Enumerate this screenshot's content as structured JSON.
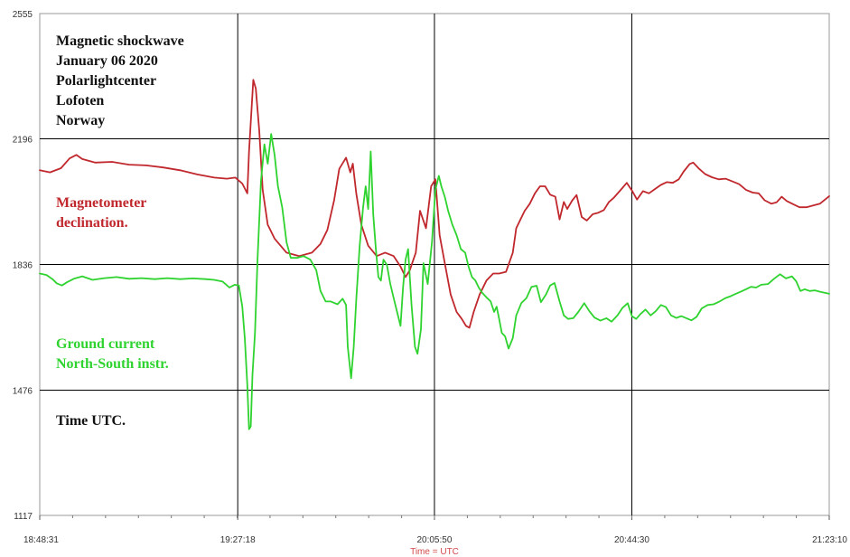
{
  "chart_data": {
    "type": "line",
    "title": "",
    "xlabel": "Time = UTC",
    "ylabel": "",
    "ylim": [
      1117,
      2555
    ],
    "yticks": [
      1117,
      1476,
      1836,
      2196,
      2555
    ],
    "yticklabels": [
      "1117",
      "1476",
      "1836",
      "2196",
      "2555"
    ],
    "xticks": [
      0,
      2327,
      4639,
      6959,
      9279
    ],
    "xticklabels": [
      "18:48:31",
      "19:27:18",
      "20:05:50",
      "20:44:30",
      "21:23:10"
    ],
    "xlim": [
      0,
      9279
    ],
    "grid": true,
    "colors": {
      "magnetometer": "#c0282d",
      "ground": "#2fd32f",
      "grid": "#000000"
    },
    "annotations": {
      "title_block": [
        "Magnetic shockwave",
        "January 06 2020",
        "Polarlightcenter",
        "Lofoten",
        "Norway"
      ],
      "magnetometer": [
        "Magnetometer",
        "declination."
      ],
      "ground": [
        "Ground current",
        "North-South instr."
      ],
      "time": "Time UTC."
    },
    "series": [
      {
        "key": "magnetometer",
        "points": [
          [
            0,
            2106
          ],
          [
            120,
            2100
          ],
          [
            250,
            2112
          ],
          [
            350,
            2140
          ],
          [
            430,
            2150
          ],
          [
            500,
            2138
          ],
          [
            650,
            2128
          ],
          [
            850,
            2130
          ],
          [
            1050,
            2122
          ],
          [
            1250,
            2120
          ],
          [
            1450,
            2114
          ],
          [
            1650,
            2106
          ],
          [
            1850,
            2094
          ],
          [
            2050,
            2085
          ],
          [
            2200,
            2082
          ],
          [
            2300,
            2085
          ],
          [
            2380,
            2068
          ],
          [
            2440,
            2040
          ],
          [
            2460,
            2160
          ],
          [
            2510,
            2365
          ],
          [
            2540,
            2340
          ],
          [
            2580,
            2220
          ],
          [
            2620,
            2050
          ],
          [
            2680,
            1950
          ],
          [
            2760,
            1910
          ],
          [
            2900,
            1870
          ],
          [
            3050,
            1860
          ],
          [
            3200,
            1870
          ],
          [
            3300,
            1895
          ],
          [
            3380,
            1935
          ],
          [
            3460,
            2020
          ],
          [
            3520,
            2110
          ],
          [
            3600,
            2142
          ],
          [
            3650,
            2100
          ],
          [
            3680,
            2125
          ],
          [
            3720,
            2040
          ],
          [
            3780,
            1950
          ],
          [
            3860,
            1890
          ],
          [
            3960,
            1860
          ],
          [
            4060,
            1870
          ],
          [
            4160,
            1860
          ],
          [
            4240,
            1830
          ],
          [
            4300,
            1800
          ],
          [
            4350,
            1820
          ],
          [
            4420,
            1870
          ],
          [
            4470,
            1990
          ],
          [
            4540,
            1940
          ],
          [
            4600,
            2060
          ],
          [
            4650,
            2080
          ],
          [
            4700,
            1920
          ],
          [
            4760,
            1840
          ],
          [
            4830,
            1750
          ],
          [
            4900,
            1700
          ],
          [
            4960,
            1680
          ],
          [
            5010,
            1660
          ],
          [
            5050,
            1655
          ],
          [
            5100,
            1700
          ],
          [
            5170,
            1750
          ],
          [
            5250,
            1790
          ],
          [
            5330,
            1810
          ],
          [
            5400,
            1810
          ],
          [
            5480,
            1815
          ],
          [
            5560,
            1870
          ],
          [
            5600,
            1940
          ],
          [
            5650,
            1965
          ],
          [
            5700,
            1990
          ],
          [
            5760,
            2010
          ],
          [
            5820,
            2040
          ],
          [
            5880,
            2060
          ],
          [
            5940,
            2060
          ],
          [
            6000,
            2036
          ],
          [
            6060,
            2030
          ],
          [
            6110,
            1965
          ],
          [
            6160,
            2015
          ],
          [
            6200,
            1995
          ],
          [
            6260,
            2020
          ],
          [
            6310,
            2035
          ],
          [
            6370,
            1972
          ],
          [
            6430,
            1962
          ],
          [
            6500,
            1980
          ],
          [
            6560,
            1984
          ],
          [
            6630,
            1992
          ],
          [
            6690,
            2015
          ],
          [
            6750,
            2028
          ],
          [
            6830,
            2050
          ],
          [
            6900,
            2070
          ],
          [
            6960,
            2048
          ],
          [
            7020,
            2022
          ],
          [
            7090,
            2046
          ],
          [
            7160,
            2040
          ],
          [
            7230,
            2052
          ],
          [
            7300,
            2064
          ],
          [
            7370,
            2072
          ],
          [
            7440,
            2070
          ],
          [
            7510,
            2080
          ],
          [
            7570,
            2103
          ],
          [
            7640,
            2124
          ],
          [
            7680,
            2128
          ],
          [
            7750,
            2110
          ],
          [
            7820,
            2095
          ],
          [
            7900,
            2086
          ],
          [
            7980,
            2080
          ],
          [
            8060,
            2082
          ],
          [
            8140,
            2074
          ],
          [
            8220,
            2066
          ],
          [
            8300,
            2050
          ],
          [
            8380,
            2042
          ],
          [
            8450,
            2040
          ],
          [
            8520,
            2020
          ],
          [
            8600,
            2010
          ],
          [
            8660,
            2014
          ],
          [
            8720,
            2030
          ],
          [
            8780,
            2018
          ],
          [
            8860,
            2008
          ],
          [
            8930,
            2000
          ],
          [
            9010,
            2000
          ],
          [
            9090,
            2005
          ],
          [
            9170,
            2010
          ],
          [
            9279,
            2032
          ]
        ]
      },
      {
        "key": "ground",
        "points": [
          [
            0,
            1810
          ],
          [
            80,
            1806
          ],
          [
            150,
            1794
          ],
          [
            200,
            1782
          ],
          [
            260,
            1776
          ],
          [
            320,
            1785
          ],
          [
            400,
            1795
          ],
          [
            500,
            1802
          ],
          [
            620,
            1792
          ],
          [
            760,
            1797
          ],
          [
            900,
            1800
          ],
          [
            1050,
            1795
          ],
          [
            1200,
            1797
          ],
          [
            1350,
            1794
          ],
          [
            1500,
            1797
          ],
          [
            1650,
            1794
          ],
          [
            1800,
            1796
          ],
          [
            1950,
            1794
          ],
          [
            2050,
            1792
          ],
          [
            2150,
            1787
          ],
          [
            2230,
            1770
          ],
          [
            2290,
            1778
          ],
          [
            2340,
            1776
          ],
          [
            2380,
            1716
          ],
          [
            2410,
            1625
          ],
          [
            2440,
            1490
          ],
          [
            2460,
            1364
          ],
          [
            2480,
            1372
          ],
          [
            2500,
            1520
          ],
          [
            2530,
            1640
          ],
          [
            2560,
            1850
          ],
          [
            2600,
            2075
          ],
          [
            2640,
            2180
          ],
          [
            2680,
            2125
          ],
          [
            2720,
            2210
          ],
          [
            2760,
            2150
          ],
          [
            2800,
            2060
          ],
          [
            2850,
            2000
          ],
          [
            2900,
            1900
          ],
          [
            2950,
            1855
          ],
          [
            3020,
            1855
          ],
          [
            3100,
            1860
          ],
          [
            3180,
            1850
          ],
          [
            3250,
            1820
          ],
          [
            3300,
            1760
          ],
          [
            3360,
            1730
          ],
          [
            3420,
            1730
          ],
          [
            3500,
            1722
          ],
          [
            3560,
            1738
          ],
          [
            3600,
            1720
          ],
          [
            3620,
            1600
          ],
          [
            3660,
            1510
          ],
          [
            3690,
            1600
          ],
          [
            3720,
            1735
          ],
          [
            3760,
            1890
          ],
          [
            3800,
            1998
          ],
          [
            3830,
            2060
          ],
          [
            3860,
            1995
          ],
          [
            3890,
            2160
          ],
          [
            3920,
            1980
          ],
          [
            3950,
            1880
          ],
          [
            3980,
            1800
          ],
          [
            4010,
            1790
          ],
          [
            4040,
            1850
          ],
          [
            4080,
            1835
          ],
          [
            4120,
            1780
          ],
          [
            4160,
            1740
          ],
          [
            4200,
            1700
          ],
          [
            4240,
            1660
          ],
          [
            4270,
            1770
          ],
          [
            4300,
            1850
          ],
          [
            4330,
            1880
          ],
          [
            4370,
            1720
          ],
          [
            4410,
            1600
          ],
          [
            4440,
            1580
          ],
          [
            4480,
            1650
          ],
          [
            4510,
            1840
          ],
          [
            4560,
            1780
          ],
          [
            4610,
            1900
          ],
          [
            4650,
            2050
          ],
          [
            4690,
            2090
          ],
          [
            4720,
            2060
          ],
          [
            4760,
            2030
          ],
          [
            4800,
            1990
          ],
          [
            4850,
            1950
          ],
          [
            4900,
            1920
          ],
          [
            4950,
            1880
          ],
          [
            5000,
            1870
          ],
          [
            5040,
            1830
          ],
          [
            5080,
            1800
          ],
          [
            5120,
            1790
          ],
          [
            5160,
            1770
          ],
          [
            5200,
            1755
          ],
          [
            5250,
            1742
          ],
          [
            5300,
            1730
          ],
          [
            5340,
            1700
          ],
          [
            5370,
            1715
          ],
          [
            5400,
            1680
          ],
          [
            5430,
            1640
          ],
          [
            5470,
            1630
          ],
          [
            5510,
            1595
          ],
          [
            5560,
            1625
          ],
          [
            5600,
            1690
          ],
          [
            5660,
            1725
          ],
          [
            5720,
            1740
          ],
          [
            5780,
            1772
          ],
          [
            5840,
            1775
          ],
          [
            5890,
            1728
          ],
          [
            5950,
            1750
          ],
          [
            6000,
            1776
          ],
          [
            6050,
            1783
          ],
          [
            6110,
            1730
          ],
          [
            6160,
            1690
          ],
          [
            6210,
            1680
          ],
          [
            6270,
            1682
          ],
          [
            6330,
            1700
          ],
          [
            6400,
            1725
          ],
          [
            6460,
            1702
          ],
          [
            6520,
            1684
          ],
          [
            6590,
            1675
          ],
          [
            6660,
            1682
          ],
          [
            6720,
            1672
          ],
          [
            6790,
            1690
          ],
          [
            6850,
            1712
          ],
          [
            6910,
            1725
          ],
          [
            6960,
            1688
          ],
          [
            7010,
            1680
          ],
          [
            7060,
            1694
          ],
          [
            7120,
            1707
          ],
          [
            7180,
            1690
          ],
          [
            7240,
            1702
          ],
          [
            7300,
            1720
          ],
          [
            7360,
            1714
          ],
          [
            7420,
            1690
          ],
          [
            7480,
            1683
          ],
          [
            7540,
            1688
          ],
          [
            7600,
            1682
          ],
          [
            7660,
            1676
          ],
          [
            7720,
            1686
          ],
          [
            7780,
            1710
          ],
          [
            7850,
            1720
          ],
          [
            7920,
            1722
          ],
          [
            7990,
            1730
          ],
          [
            8060,
            1740
          ],
          [
            8120,
            1745
          ],
          [
            8180,
            1752
          ],
          [
            8240,
            1758
          ],
          [
            8300,
            1765
          ],
          [
            8360,
            1772
          ],
          [
            8420,
            1770
          ],
          [
            8480,
            1778
          ],
          [
            8560,
            1780
          ],
          [
            8630,
            1795
          ],
          [
            8700,
            1808
          ],
          [
            8770,
            1796
          ],
          [
            8840,
            1802
          ],
          [
            8890,
            1788
          ],
          [
            8940,
            1760
          ],
          [
            8990,
            1765
          ],
          [
            9050,
            1760
          ],
          [
            9110,
            1762
          ],
          [
            9170,
            1758
          ],
          [
            9279,
            1752
          ]
        ]
      }
    ]
  }
}
